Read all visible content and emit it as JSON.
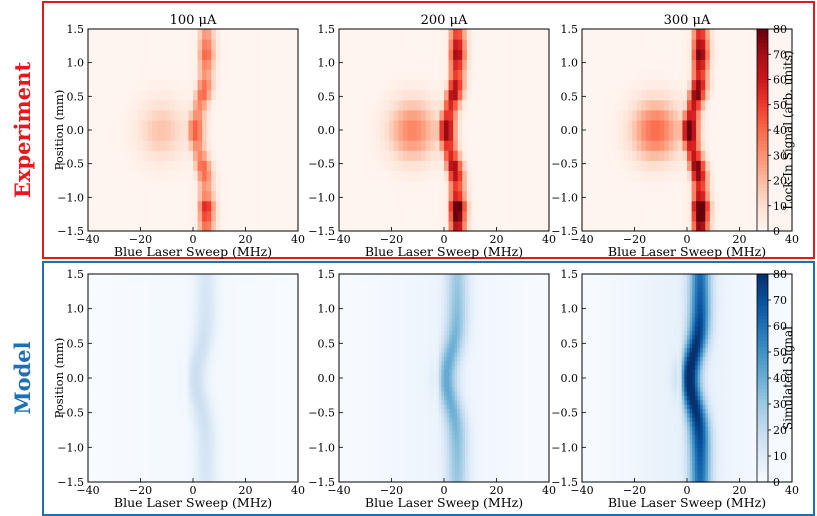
{
  "colors": {
    "experiment_border": "#e8171b",
    "model_border": "#1f6fb5",
    "experiment_label": "#e8171b",
    "model_label": "#1f6fb5",
    "reds_low": "#fff5f0",
    "reds_high": "#67000d",
    "blues_low": "#f7fbff",
    "blues_high": "#08306b"
  },
  "rows": [
    {
      "label": "Experiment",
      "colormap": "Reds",
      "colorbar_label": "Lock-In Signal (arb. units)"
    },
    {
      "label": "Model",
      "colormap": "Blues",
      "colorbar_label": "Simulated Signal"
    }
  ],
  "chart_data": [
    {
      "type": "heatmap",
      "row": "Experiment",
      "panels": [
        {
          "title": "100 μA",
          "peak": 42,
          "plateau": 18,
          "curve": 4
        },
        {
          "title": "200 μA",
          "peak": 72,
          "plateau": 34,
          "curve": 4
        },
        {
          "title": "300 μA",
          "peak": 80,
          "plateau": 40,
          "curve": 4
        }
      ],
      "xlabel": "Blue Laser Sweep (MHz)",
      "ylabel": "Position (mm)",
      "xlim": [
        -40,
        40
      ],
      "ylim": [
        -1.5,
        1.5
      ],
      "xticks": [
        -40,
        -20,
        0,
        20,
        40
      ],
      "yticks": [
        -1.5,
        -1.0,
        -0.5,
        0.0,
        0.5,
        1.0,
        1.5
      ],
      "xtick_labels": [
        "−40",
        "−20",
        "0",
        "20",
        "40"
      ],
      "ytick_labels": [
        "−1.5",
        "−1.0",
        "−0.5",
        "0.0",
        "0.5",
        "1.0",
        "1.5"
      ],
      "colorbar": {
        "range": [
          0,
          80
        ],
        "ticks": [
          "0",
          "10",
          "20",
          "30",
          "40",
          "50",
          "60",
          "70",
          "80"
        ]
      }
    },
    {
      "type": "heatmap",
      "row": "Model",
      "panels": [
        {
          "title": "",
          "peak": 16,
          "plateau": 3,
          "curve": 4
        },
        {
          "title": "",
          "peak": 38,
          "plateau": 8,
          "curve": 4
        },
        {
          "title": "",
          "peak": 80,
          "plateau": 12,
          "curve": 4
        }
      ],
      "xlabel": "Blue Laser Sweep (MHz)",
      "ylabel": "Position (mm)",
      "xlim": [
        -40,
        40
      ],
      "ylim": [
        -1.5,
        1.5
      ],
      "xticks": [
        -40,
        -20,
        0,
        20,
        40
      ],
      "yticks": [
        -1.5,
        -1.0,
        -0.5,
        0.0,
        0.5,
        1.0,
        1.5
      ],
      "xtick_labels": [
        "−40",
        "−20",
        "0",
        "20",
        "40"
      ],
      "ytick_labels": [
        "−1.5",
        "−1.0",
        "−0.5",
        "0.0",
        "0.5",
        "1.0",
        "1.5"
      ],
      "colorbar": {
        "range": [
          0,
          80
        ],
        "ticks": [
          "0",
          "10",
          "20",
          "30",
          "40",
          "50",
          "60",
          "70",
          "80"
        ]
      }
    }
  ]
}
